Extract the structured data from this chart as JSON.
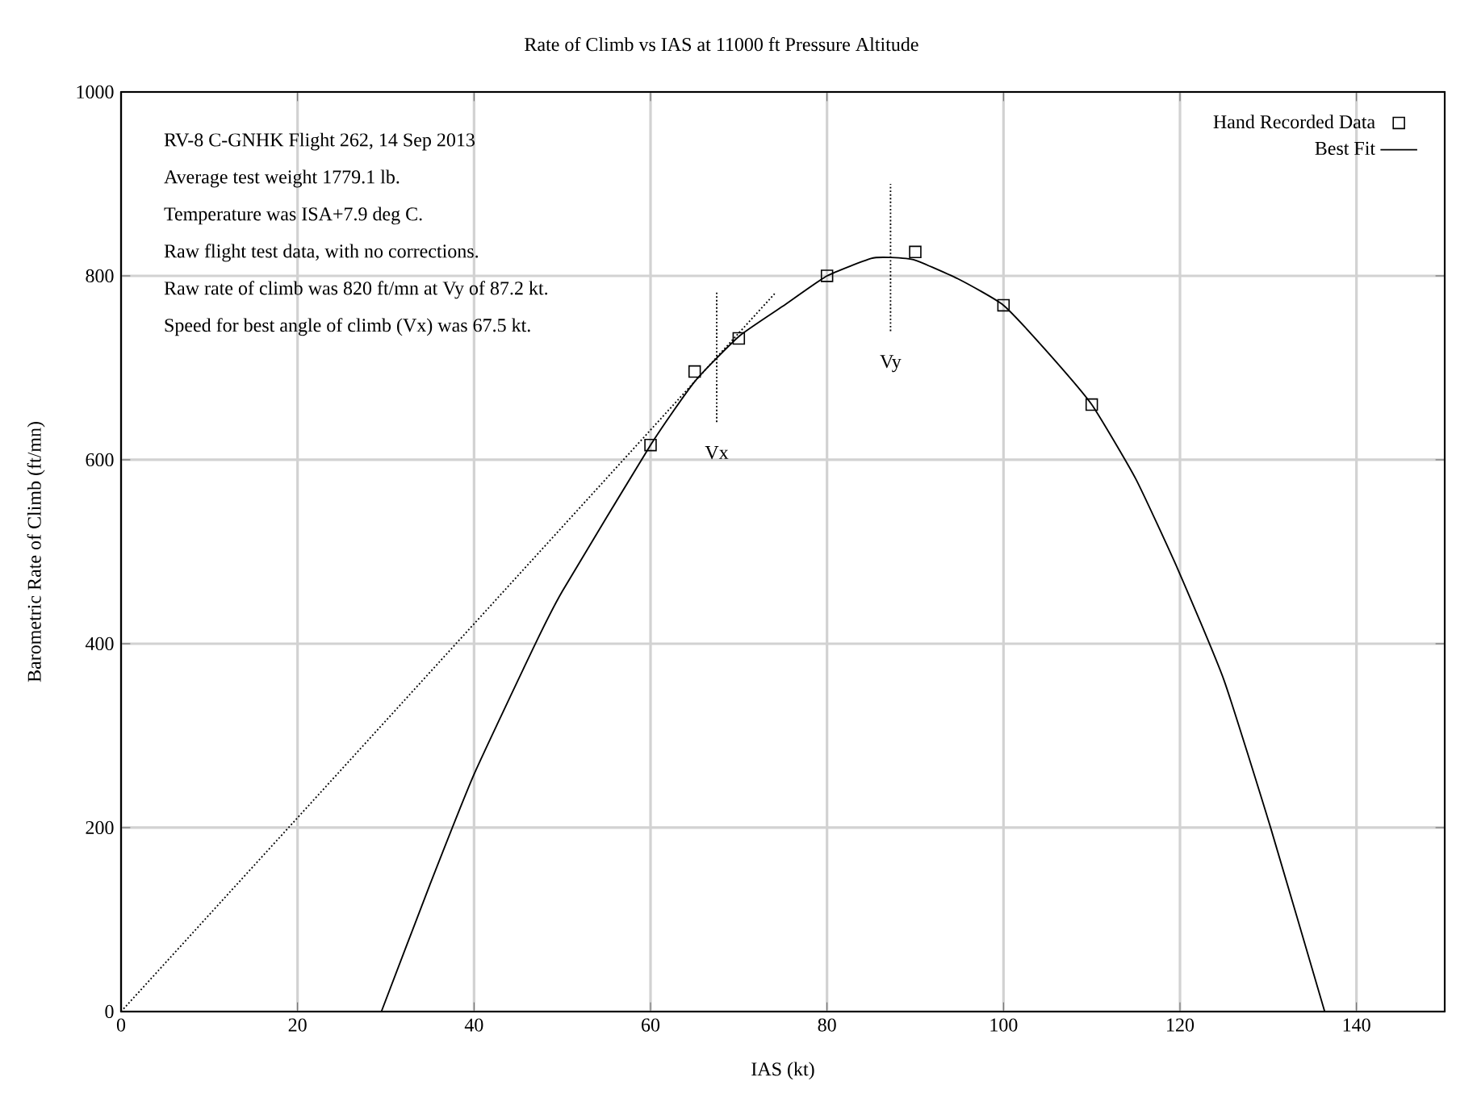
{
  "chart_data": {
    "type": "scatter",
    "title": "Rate of Climb vs IAS at 11000 ft Pressure Altitude",
    "xlabel": "IAS (kt)",
    "ylabel": "Barometric Rate of Climb (ft/mn)",
    "xlim": [
      0,
      150
    ],
    "ylim": [
      0,
      1000
    ],
    "xticks": [
      0,
      20,
      40,
      60,
      80,
      100,
      120,
      140
    ],
    "yticks": [
      0,
      200,
      400,
      600,
      800,
      1000
    ],
    "grid": true,
    "legend": "top right",
    "series": [
      {
        "name": "Hand Recorded Data",
        "marker": "square",
        "color": "#000000",
        "x": [
          60,
          65,
          70,
          80,
          90,
          100,
          110
        ],
        "values": [
          616,
          696,
          732,
          800,
          826,
          768,
          660
        ]
      },
      {
        "name": "Best Fit",
        "type": "line",
        "marker": "none",
        "line_style": "solid",
        "color": "#000000",
        "x": [
          29.5,
          35,
          40,
          47,
          50,
          60,
          65,
          70,
          75,
          80,
          85,
          87.2,
          90,
          95,
          100,
          105,
          110,
          115,
          119.8,
          125,
          130.3,
          136.4
        ],
        "values": [
          0,
          138,
          258,
          401,
          457,
          616,
          685,
          734,
          767,
          800,
          819,
          820,
          817,
          796,
          768,
          717,
          660,
          579,
          480,
          360,
          199,
          0
        ]
      },
      {
        "type": "line",
        "marker": "none",
        "line_style": "dotted",
        "color": "#000000",
        "x": [
          0,
          74.1
        ],
        "values": [
          0,
          781
        ]
      },
      {
        "type": "line",
        "marker": "none",
        "line_style": "dotted",
        "color": "#000000",
        "x": [
          67.5,
          67.5
        ],
        "values": [
          641,
          784
        ]
      },
      {
        "type": "line",
        "marker": "none",
        "line_style": "dotted",
        "color": "#000000",
        "x": [
          87.2,
          87.2
        ],
        "values": [
          740,
          900
        ]
      }
    ],
    "annotations": [
      "RV-8 C-GNHK Flight 262, 14 Sep 2013",
      "Average test weight 1779.1 lb.",
      "Temperature was ISA+7.9 deg C.",
      "Raw flight test data, with no corrections.",
      "Raw rate of climb was 820 ft/mn at Vy of 87.2 kt.",
      "Speed for best angle of climb (Vx) was 67.5 kt.",
      {
        "text": "Vx",
        "x": 67.5,
        "y": 641
      },
      {
        "text": "Vy",
        "x": 87.2,
        "y": 740
      }
    ]
  }
}
